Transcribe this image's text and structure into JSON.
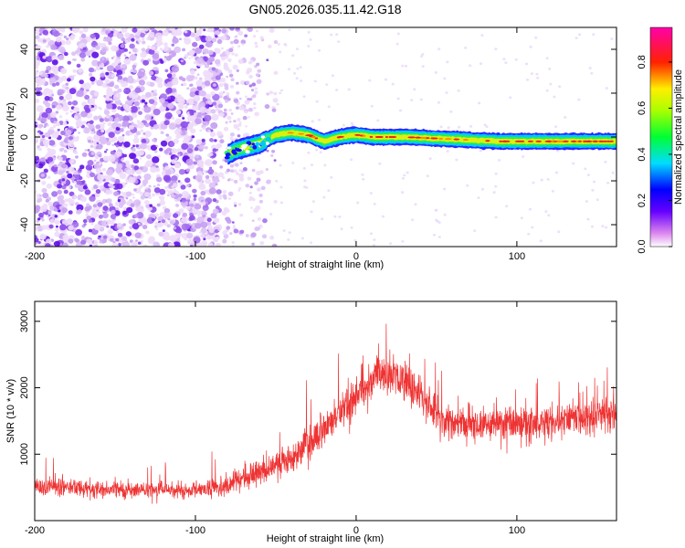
{
  "title": "GN05.2026.035.11.42.G18",
  "chart_data": [
    {
      "type": "heatmap",
      "xlabel": "Height of straight line (km)",
      "ylabel": "Frequency (Hz)",
      "xlim": [
        -200,
        162
      ],
      "ylim": [
        -50,
        50
      ],
      "xticks": [
        -200,
        -100,
        0,
        100
      ],
      "yticks": [
        -40,
        -20,
        0,
        20,
        40
      ],
      "colorbar": {
        "label": "Normalized spectral amplitude",
        "range": [
          0,
          0.95
        ],
        "ticks": [
          0.0,
          0.2,
          0.4,
          0.6,
          0.8
        ],
        "colormap": "rainbow (white, magenta, blue, cyan, green, yellow, red, magenta)"
      },
      "tone_track": [
        {
          "x": -80,
          "y": -8
        },
        {
          "x": -75,
          "y": -6
        },
        {
          "x": -70,
          "y": -5
        },
        {
          "x": -60,
          "y": -3
        },
        {
          "x": -50,
          "y": 1
        },
        {
          "x": -40,
          "y": 2
        },
        {
          "x": -30,
          "y": 1
        },
        {
          "x": -20,
          "y": -2
        },
        {
          "x": -10,
          "y": 0
        },
        {
          "x": 0,
          "y": 1
        },
        {
          "x": 10,
          "y": 0
        },
        {
          "x": 30,
          "y": 0
        },
        {
          "x": 60,
          "y": -1
        },
        {
          "x": 90,
          "y": -2
        },
        {
          "x": 120,
          "y": -2
        },
        {
          "x": 162,
          "y": -2
        }
      ]
    },
    {
      "type": "line",
      "xlabel": "Height of straight line (km)",
      "ylabel": "SNR (10 * v/v)",
      "xlim": [
        -200,
        162
      ],
      "ylim": [
        0,
        3300
      ],
      "xticks": [
        -200,
        -100,
        0,
        100
      ],
      "yticks": [
        1000,
        2000,
        3000
      ],
      "color": "#ee3333",
      "envelope": [
        {
          "x": -200,
          "mean": 500,
          "spread": 250
        },
        {
          "x": -150,
          "mean": 470,
          "spread": 230
        },
        {
          "x": -100,
          "mean": 450,
          "spread": 230
        },
        {
          "x": -80,
          "mean": 530,
          "spread": 300
        },
        {
          "x": -60,
          "mean": 750,
          "spread": 400
        },
        {
          "x": -40,
          "mean": 950,
          "spread": 450
        },
        {
          "x": -20,
          "mean": 1350,
          "spread": 550
        },
        {
          "x": 0,
          "mean": 1900,
          "spread": 600
        },
        {
          "x": 15,
          "mean": 2250,
          "spread": 550
        },
        {
          "x": 35,
          "mean": 2050,
          "spread": 550
        },
        {
          "x": 55,
          "mean": 1500,
          "spread": 500
        },
        {
          "x": 80,
          "mean": 1450,
          "spread": 500
        },
        {
          "x": 110,
          "mean": 1450,
          "spread": 550
        },
        {
          "x": 140,
          "mean": 1550,
          "spread": 550
        },
        {
          "x": 162,
          "mean": 1650,
          "spread": 600
        }
      ]
    }
  ]
}
